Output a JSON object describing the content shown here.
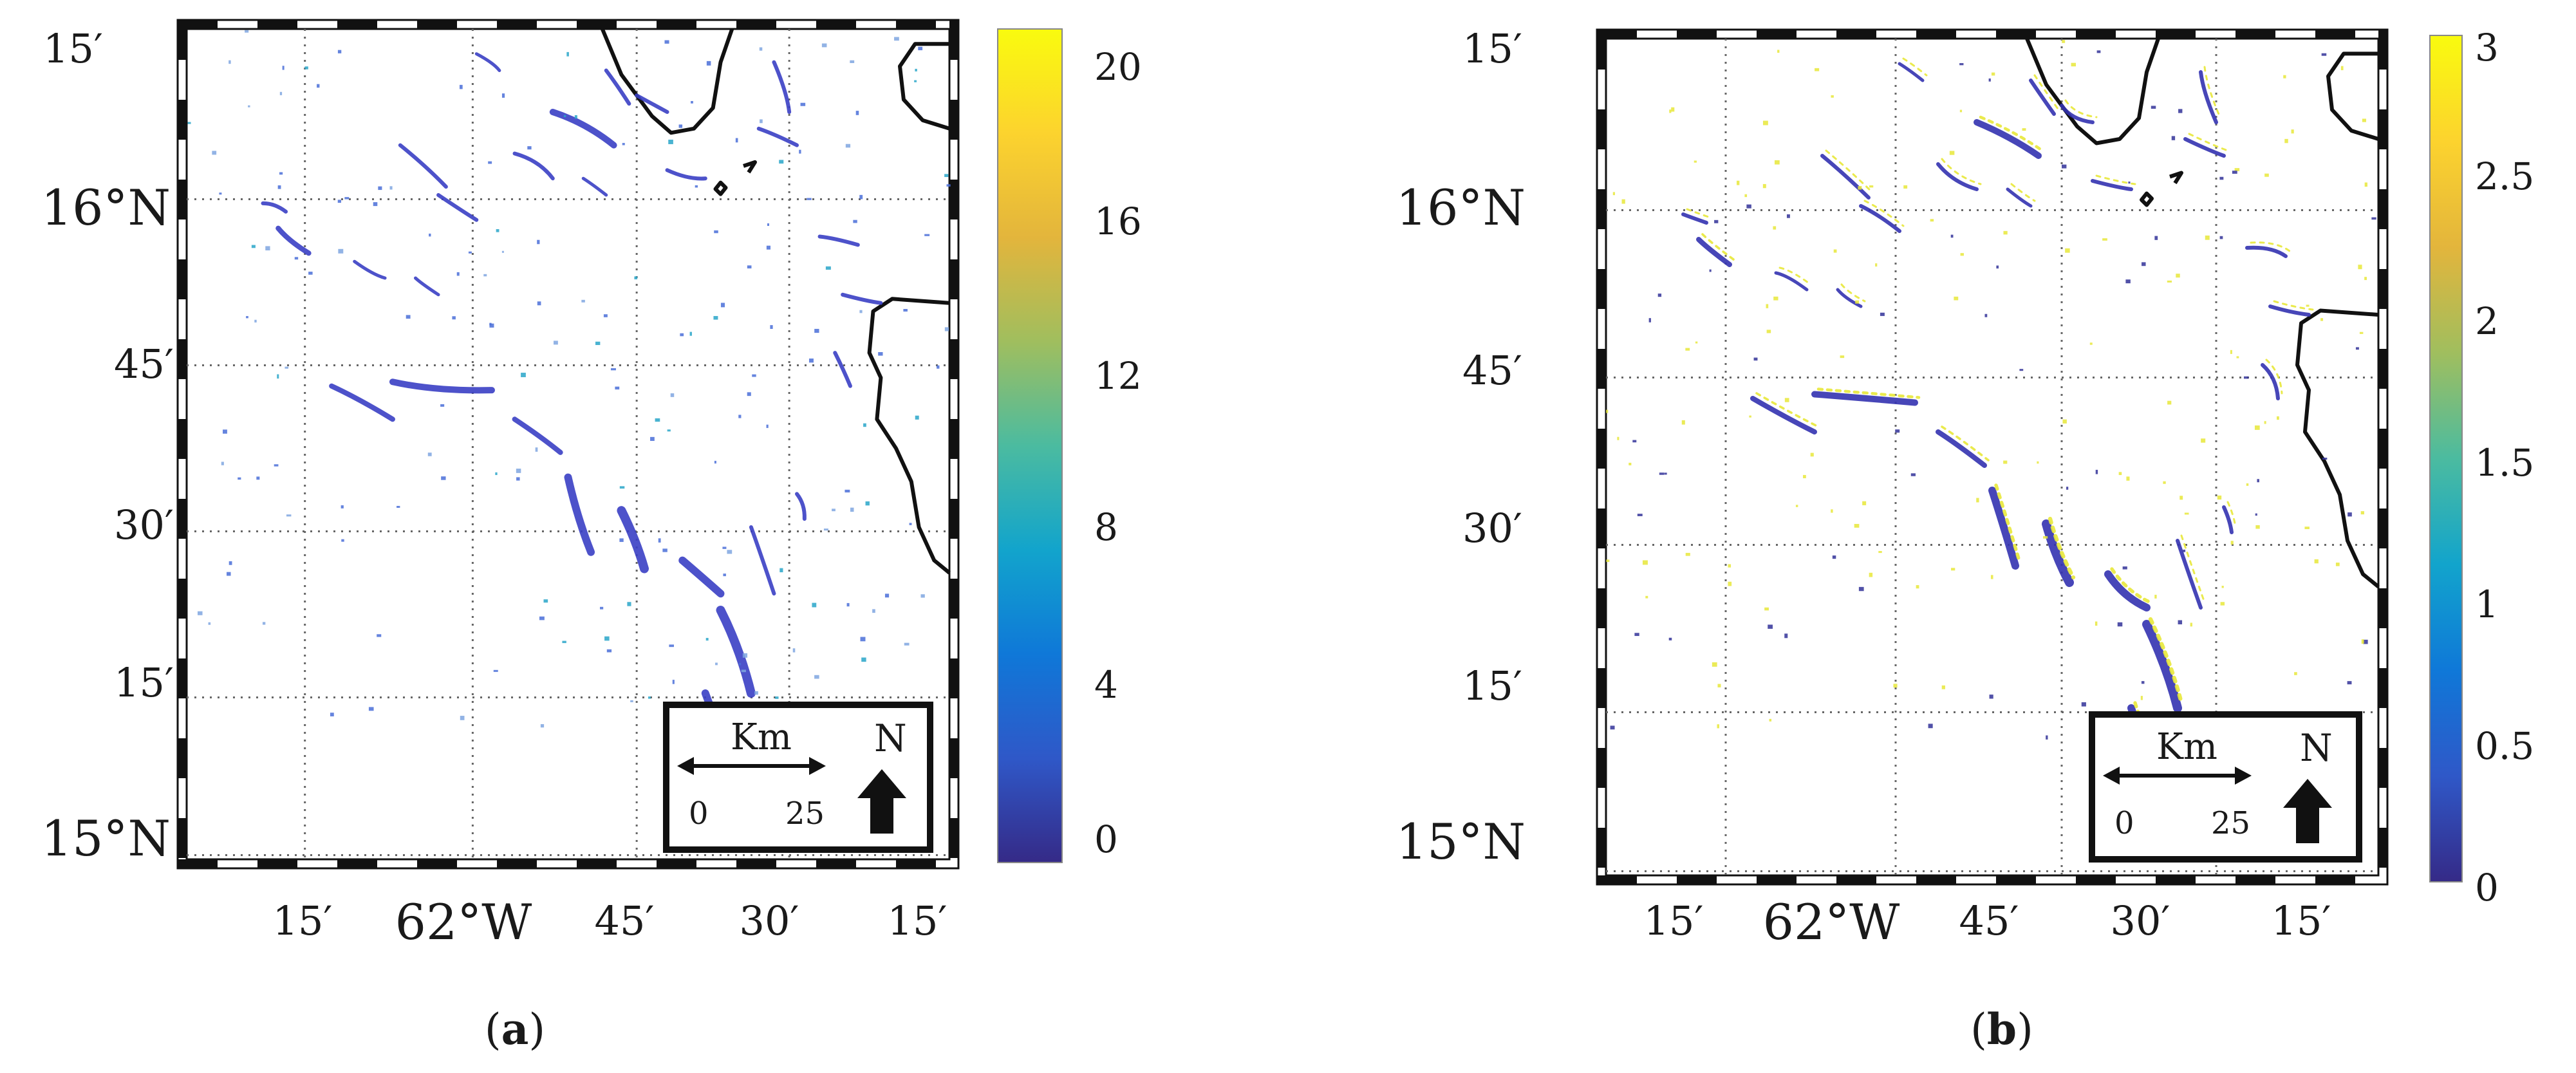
{
  "panels": [
    {
      "id": "a",
      "caption_letter": "a",
      "lat_labels": [
        "15′",
        "16°N",
        "45′",
        "30′",
        "15′",
        "15°N"
      ],
      "lon_labels": [
        "15′",
        "62°W",
        "45′",
        "30′",
        "15′"
      ],
      "colorbar": {
        "ticks": [
          "20",
          "16",
          "12",
          "8",
          "4",
          "0"
        ],
        "min": 0,
        "max": 21
      },
      "inset": {
        "scale_unit": "Km",
        "scale_start": "0",
        "scale_end": "25",
        "north": "N"
      }
    },
    {
      "id": "b",
      "caption_letter": "b",
      "lat_labels": [
        "15′",
        "16°N",
        "45′",
        "30′",
        "15′",
        "15°N"
      ],
      "lon_labels": [
        "15′",
        "62°W",
        "45′",
        "30′",
        "15′"
      ],
      "colorbar": {
        "ticks": [
          "3",
          "2.5",
          "2",
          "1.5",
          "1",
          "0.5",
          "0"
        ],
        "min": 0,
        "max": 3
      },
      "inset": {
        "scale_unit": "Km",
        "scale_start": "0",
        "scale_end": "25",
        "north": "N"
      }
    }
  ],
  "colors": {
    "parula": [
      "#352a87",
      "#2f58c8",
      "#0f78d8",
      "#12a4cc",
      "#4bbba0",
      "#a0be5e",
      "#e3b53c",
      "#fcd32e",
      "#f9fb0e"
    ],
    "sargassum_low": "#3a3fc4",
    "sargassum_high": "#e8e83a",
    "coast": "#111111",
    "grid": "#666666"
  }
}
